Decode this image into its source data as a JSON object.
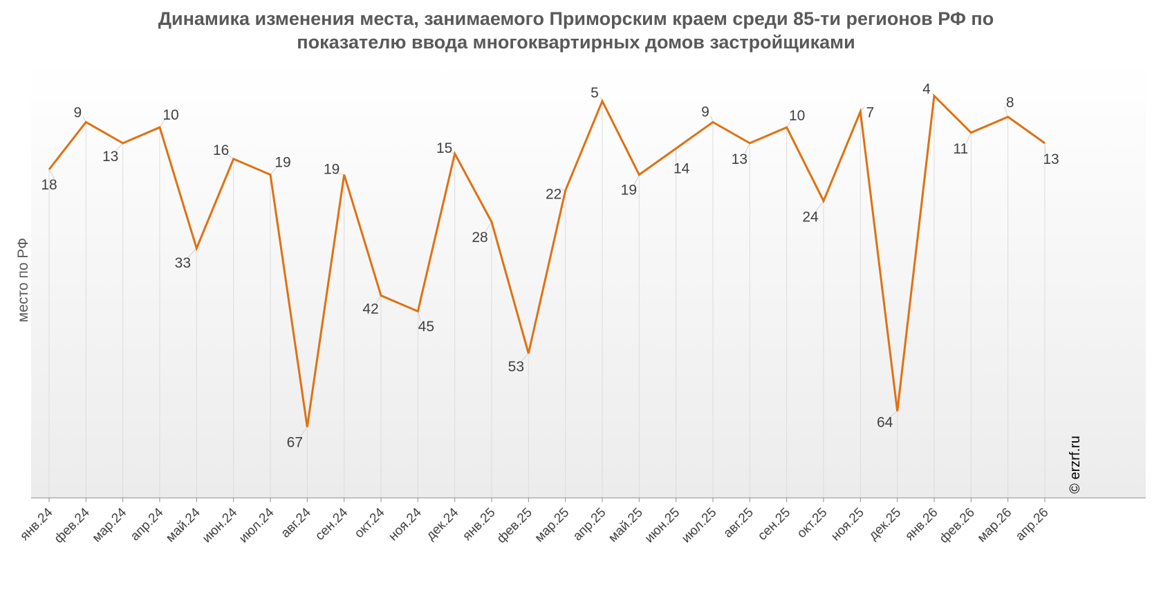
{
  "chart_data": {
    "type": "line",
    "title_lines": [
      "Динамика изменения места, занимаемого Приморским краем среди 85-ти регионов РФ по",
      "показателю ввода многоквартирных домов застройщиками"
    ],
    "ylabel": "место по РФ",
    "y_inverted": true,
    "ylim": [
      1,
      85
    ],
    "grid": "vertical",
    "legend": "none",
    "categories": [
      "янв.24",
      "фев.24",
      "мар.24",
      "апр.24",
      "май.24",
      "июн.24",
      "июл.24",
      "авг.24",
      "сен.24",
      "окт.24",
      "ноя.24",
      "дек.24",
      "янв.25",
      "фев.25",
      "мар.25",
      "апр.25",
      "май.25",
      "июн.25",
      "июл.25",
      "авг.25",
      "сен.25",
      "окт.25",
      "ноя.25",
      "дек.25",
      "янв.26",
      "фев.26",
      "мар.26",
      "апр.26"
    ],
    "values": [
      18,
      9,
      13,
      10,
      33,
      16,
      19,
      67,
      19,
      42,
      45,
      15,
      28,
      53,
      22,
      5,
      19,
      14,
      9,
      13,
      10,
      24,
      7,
      64,
      4,
      11,
      8,
      13
    ],
    "labels": [
      "18",
      "9",
      "13",
      "10",
      "33",
      "16",
      "19",
      "67",
      "19",
      "42",
      "45",
      "15",
      "28",
      "53",
      "22",
      "5",
      "19",
      "14",
      "9",
      "13",
      "10",
      "24",
      "7",
      "64",
      "4",
      "11",
      "8",
      "13"
    ],
    "series_color": "#e07010",
    "credit": "© erzrf.ru"
  }
}
